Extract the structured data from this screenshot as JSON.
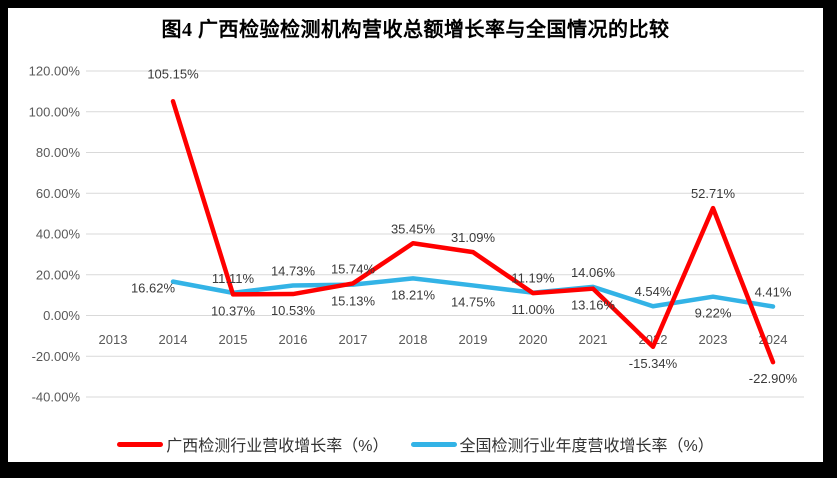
{
  "figure": {
    "title": "图4 广西检验检测机构营收总额增长率与全国情况的比较"
  },
  "chart_data": {
    "type": "line",
    "title": "图4 广西检验检测机构营收总额增长率与全国情况的比较",
    "categories": [
      "2013",
      "2014",
      "2015",
      "2016",
      "2017",
      "2018",
      "2019",
      "2020",
      "2021",
      "2022",
      "2023",
      "2024"
    ],
    "series": [
      {
        "name": "广西检测行业营收增长率（%）",
        "color": "#ff0000",
        "values": [
          null,
          105.15,
          10.37,
          10.53,
          15.74,
          35.45,
          31.09,
          11.0,
          13.16,
          -15.34,
          52.71,
          -22.9
        ]
      },
      {
        "name": "全国检测行业年度营收增长率（%）",
        "color": "#33b3e6",
        "values": [
          null,
          16.62,
          11.11,
          14.73,
          15.13,
          18.21,
          14.75,
          11.19,
          14.06,
          4.54,
          9.22,
          4.41
        ]
      }
    ],
    "xlabel": "",
    "ylabel": "",
    "ylim": [
      -40,
      120
    ],
    "y_ticks": [
      "120.00%",
      "100.00%",
      "80.00%",
      "60.00%",
      "40.00%",
      "20.00%",
      "0.00%",
      "-20.00%",
      "-40.00%"
    ],
    "grid": true,
    "gridline_color": "#d9d9d9",
    "axis_label_color": "#595959",
    "legend_position": "bottom"
  }
}
